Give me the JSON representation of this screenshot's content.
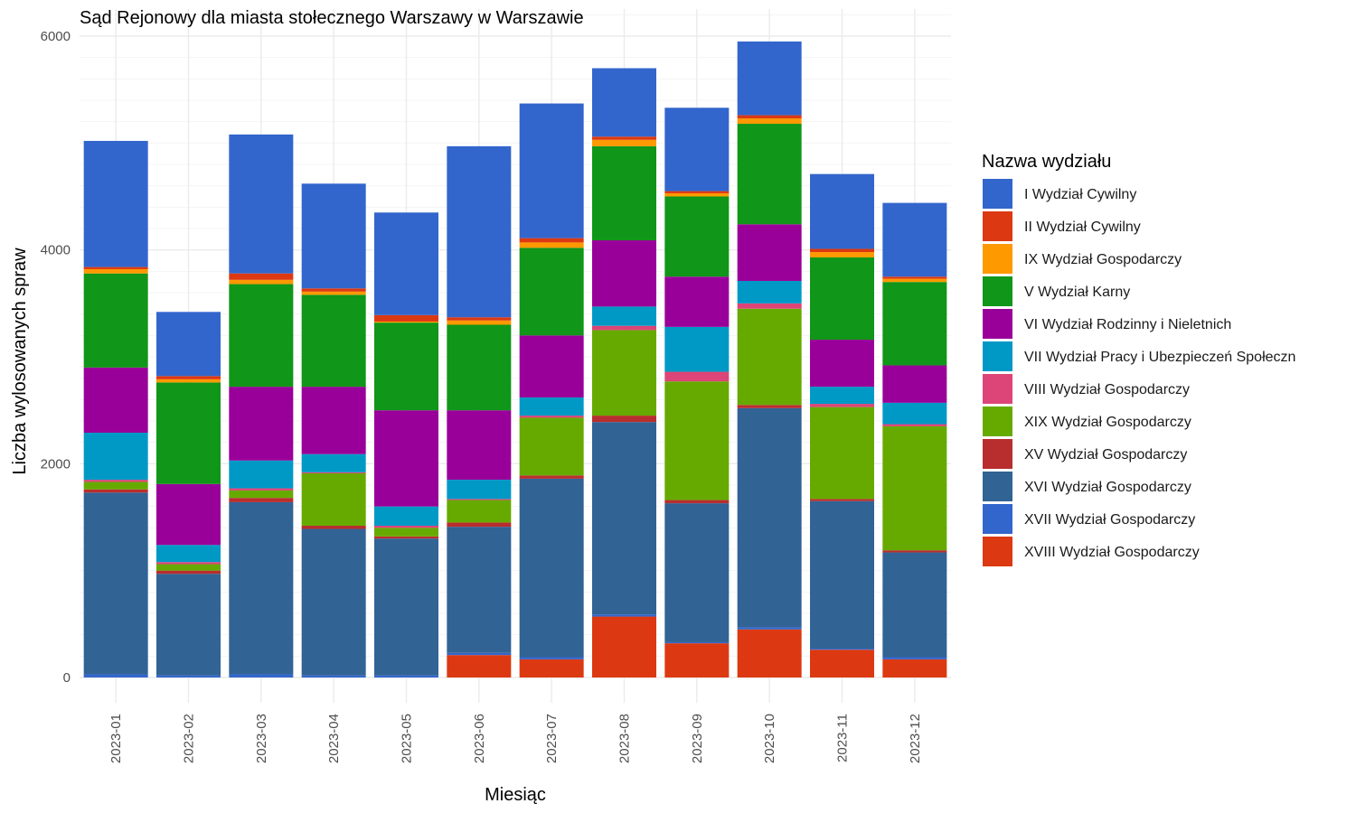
{
  "chart_data": {
    "type": "bar",
    "stacked": true,
    "title": "Sąd Rejonowy dla miasta stołecznego Warszawy w Warszawie",
    "xlabel": "Miesiąc",
    "ylabel": "Liczba wylosowanych spraw",
    "ylim": [
      0,
      6000
    ],
    "y_ticks": [
      0,
      2000,
      4000,
      6000
    ],
    "grid": true,
    "legend_title": "Nazwa wydziału",
    "legend_position": "right",
    "categories": [
      "2023-01",
      "2023-02",
      "2023-03",
      "2023-04",
      "2023-05",
      "2023-06",
      "2023-07",
      "2023-08",
      "2023-09",
      "2023-10",
      "2023-11",
      "2023-12"
    ],
    "series": [
      {
        "name": "XVIII Wydział Gospodarczy",
        "color": "#dc3912",
        "values": [
          0,
          0,
          0,
          0,
          0,
          210,
          170,
          570,
          320,
          450,
          260,
          170
        ]
      },
      {
        "name": "XVII Wydział Gospodarczy",
        "color": "#3366cc",
        "values": [
          30,
          20,
          30,
          20,
          20,
          20,
          20,
          20,
          10,
          20,
          10,
          20
        ]
      },
      {
        "name": "XVI Wydział Gospodarczy",
        "color": "#316395",
        "values": [
          1700,
          950,
          1610,
          1370,
          1280,
          1180,
          1670,
          1800,
          1300,
          2050,
          1380,
          980
        ]
      },
      {
        "name": "XV Wydział Gospodarczy",
        "color": "#b82e2e",
        "values": [
          30,
          30,
          40,
          30,
          20,
          40,
          30,
          60,
          30,
          30,
          20,
          20
        ]
      },
      {
        "name": "XIX Wydział Gospodarczy",
        "color": "#66aa00",
        "values": [
          70,
          60,
          70,
          490,
          80,
          210,
          540,
          800,
          1110,
          900,
          860,
          1160
        ]
      },
      {
        "name": "VIII Wydział Gospodarczy",
        "color": "#dd4477",
        "values": [
          20,
          20,
          20,
          10,
          20,
          10,
          20,
          40,
          90,
          50,
          30,
          20
        ]
      },
      {
        "name": "VII Wydział Pracy i Ubezpieczeń Społeczn",
        "color": "#0099c6",
        "values": [
          440,
          160,
          260,
          170,
          180,
          180,
          170,
          180,
          420,
          210,
          160,
          200
        ]
      },
      {
        "name": "VI Wydział Rodzinny i Nieletnich",
        "color": "#990099",
        "values": [
          610,
          570,
          690,
          630,
          900,
          650,
          580,
          620,
          470,
          530,
          440,
          350
        ]
      },
      {
        "name": "V Wydział Karny",
        "color": "#109618",
        "values": [
          880,
          950,
          960,
          860,
          820,
          800,
          820,
          880,
          750,
          940,
          770,
          780
        ]
      },
      {
        "name": "IX Wydział Gospodarczy",
        "color": "#ff9900",
        "values": [
          40,
          30,
          40,
          30,
          10,
          40,
          50,
          60,
          30,
          50,
          50,
          30
        ]
      },
      {
        "name": "II Wydział Cywilny",
        "color": "#dc3912",
        "values": [
          20,
          30,
          60,
          30,
          60,
          30,
          40,
          30,
          20,
          30,
          30,
          20
        ]
      },
      {
        "name": "I Wydział Cywilny",
        "color": "#3366cc",
        "values": [
          1180,
          600,
          1300,
          980,
          960,
          1600,
          1260,
          640,
          780,
          690,
          700,
          690
        ]
      }
    ],
    "legend_order": [
      "I Wydział Cywilny",
      "II Wydział Cywilny",
      "IX Wydział Gospodarczy",
      "V Wydział Karny",
      "VI Wydział Rodzinny i Nieletnich",
      "VII Wydział Pracy i Ubezpieczeń Społeczn",
      "VIII Wydział Gospodarczy",
      "XIX Wydział Gospodarczy",
      "XV Wydział Gospodarczy",
      "XVI Wydział Gospodarczy",
      "XVII Wydział Gospodarczy",
      "XVIII Wydział Gospodarczy"
    ]
  }
}
